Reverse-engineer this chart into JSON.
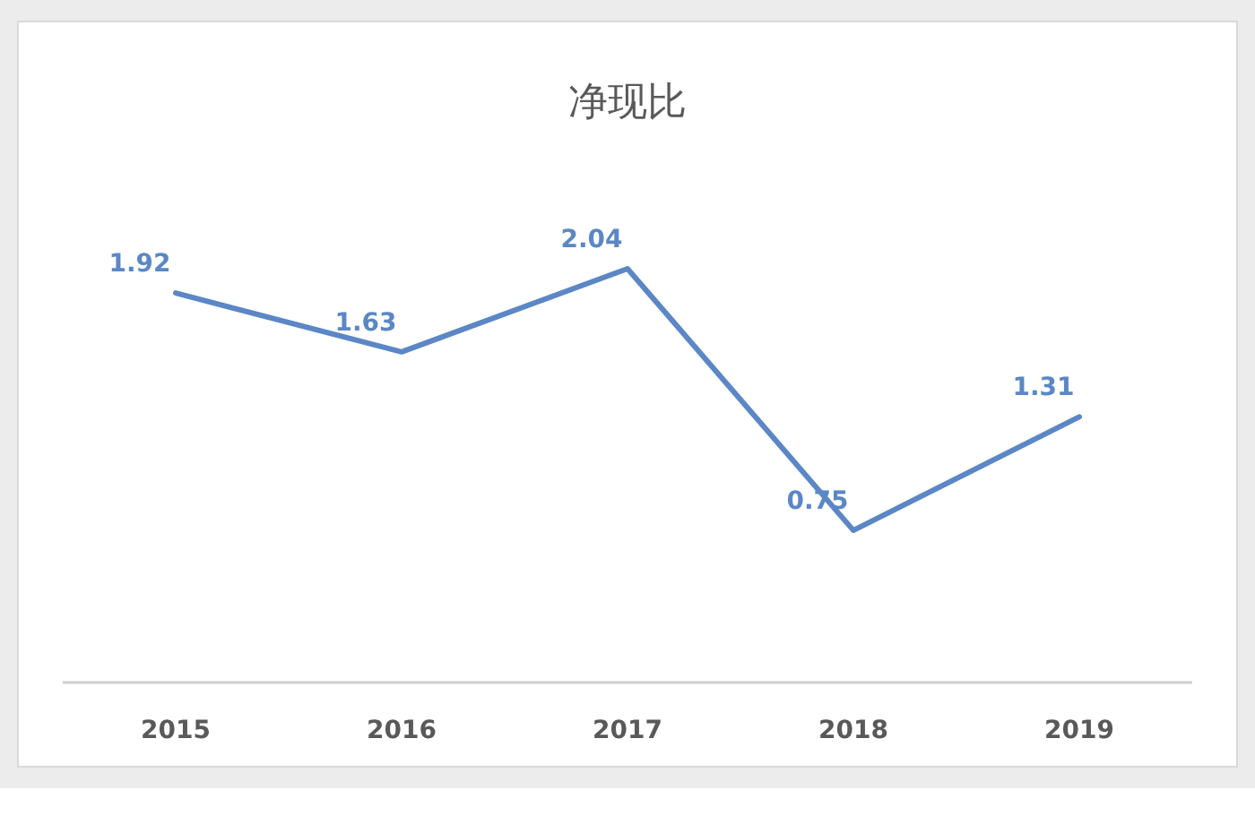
{
  "chart_data": {
    "type": "line",
    "title": "净现比",
    "categories": [
      "2015",
      "2016",
      "2017",
      "2018",
      "2019"
    ],
    "series": [
      {
        "color": "#5b87c6",
        "values": [
          1.92,
          1.63,
          2.04,
          0.75,
          1.31
        ]
      }
    ],
    "data_labels": true,
    "marker": "none",
    "line_style": "solid"
  }
}
